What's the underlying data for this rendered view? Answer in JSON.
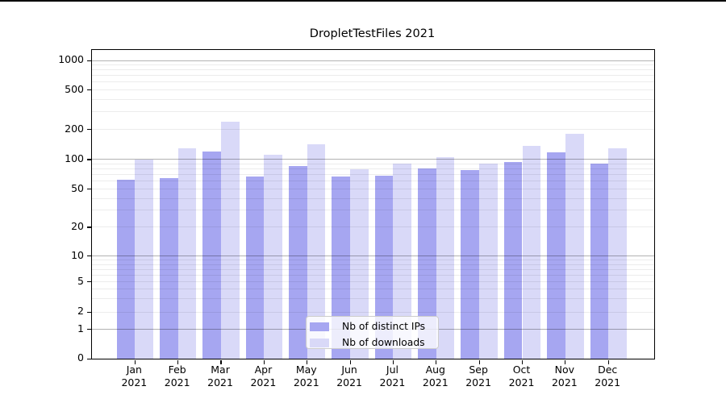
{
  "chart_data": {
    "type": "bar",
    "title": "DropletTestFiles 2021",
    "categories": [
      {
        "month": "Jan",
        "year": "2021"
      },
      {
        "month": "Feb",
        "year": "2021"
      },
      {
        "month": "Mar",
        "year": "2021"
      },
      {
        "month": "Apr",
        "year": "2021"
      },
      {
        "month": "May",
        "year": "2021"
      },
      {
        "month": "Jun",
        "year": "2021"
      },
      {
        "month": "Jul",
        "year": "2021"
      },
      {
        "month": "Aug",
        "year": "2021"
      },
      {
        "month": "Sep",
        "year": "2021"
      },
      {
        "month": "Oct",
        "year": "2021"
      },
      {
        "month": "Nov",
        "year": "2021"
      },
      {
        "month": "Dec",
        "year": "2021"
      }
    ],
    "series": [
      {
        "name": "Nb of distinct IPs",
        "color": "#a6a6f1",
        "values": [
          62,
          65,
          120,
          67,
          85,
          67,
          68,
          81,
          78,
          94,
          117,
          91
        ]
      },
      {
        "name": "Nb of downloads",
        "color": "#d9d9f8",
        "values": [
          100,
          130,
          240,
          112,
          143,
          80,
          90,
          105,
          90,
          136,
          180,
          130
        ]
      }
    ],
    "yscale": "symlog",
    "yticks": [
      0,
      1,
      2,
      5,
      10,
      20,
      50,
      100,
      200,
      500,
      1000
    ],
    "ylim": [
      0,
      1250
    ],
    "grid": true,
    "legend_position": "lower center"
  }
}
